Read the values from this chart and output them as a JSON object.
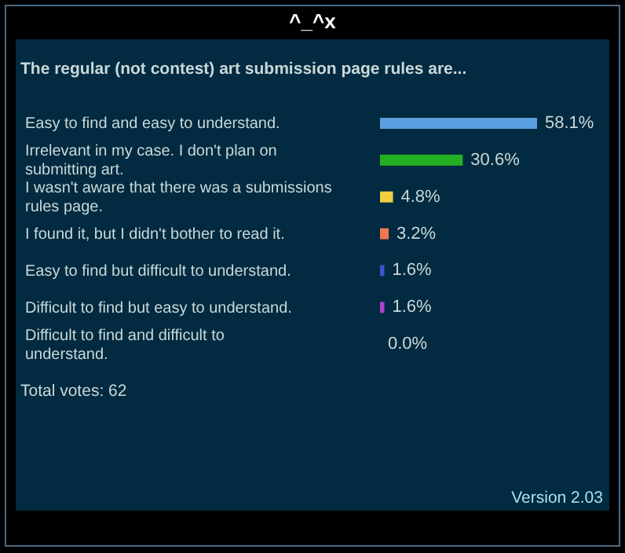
{
  "chart_data": {
    "type": "bar",
    "orientation": "horizontal",
    "title": "^_^x",
    "subtitle": "The regular (not contest) art submission page rules are...",
    "categories": [
      "Easy to find and easy to understand.",
      "Irrelevant in my case. I don't plan on submitting art.",
      "I wasn't aware that there was a submissions rules page.",
      "I found it, but I didn't bother to read it.",
      "Easy to find but difficult to understand.",
      "Difficult to find but easy to understand.",
      "Difficult to find and difficult to understand."
    ],
    "values": [
      58.1,
      30.6,
      4.8,
      3.2,
      1.6,
      1.6,
      0.0
    ],
    "value_labels": [
      "58.1%",
      "30.6%",
      "4.8%",
      "3.2%",
      "1.6%",
      "1.6%",
      "0.0%"
    ],
    "colors": [
      "#5aa0e0",
      "#22b022",
      "#f0d040",
      "#f07850",
      "#4050d0",
      "#b040d0",
      "#888888"
    ],
    "annotations": [
      "Total votes: 62",
      "Version 2.03"
    ],
    "grid": false,
    "legend": false
  }
}
